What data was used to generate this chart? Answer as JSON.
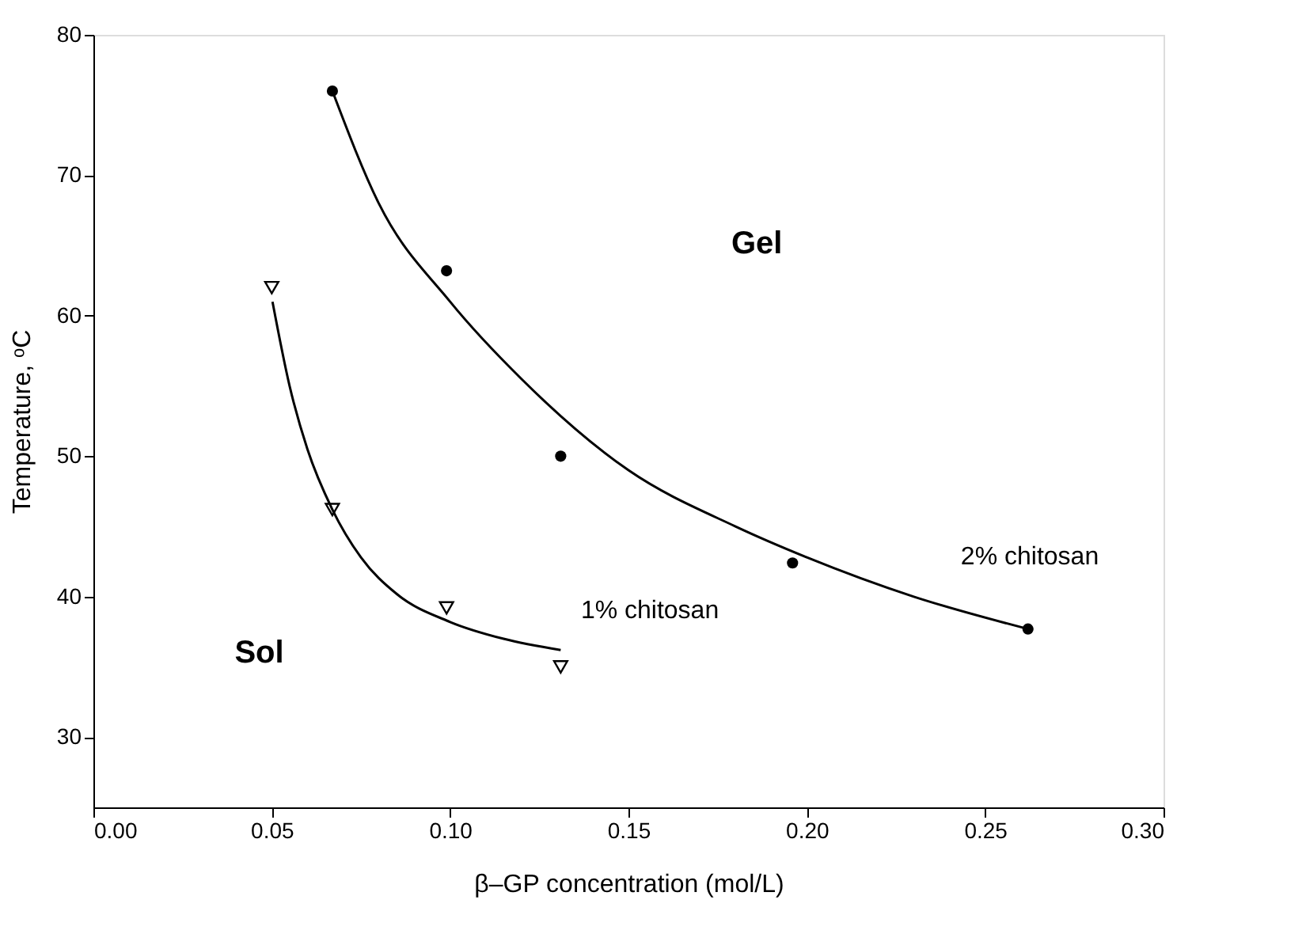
{
  "chart_data": {
    "type": "scatter",
    "xlabel": "β–GP concentration (mol/L)",
    "ylabel": "Temperature, ᵒC",
    "xlim": [
      0,
      0.3
    ],
    "ylim": [
      25,
      80
    ],
    "xticks": [
      {
        "value": 0,
        "label": "0.00"
      },
      {
        "value": 0.05,
        "label": "0.05"
      },
      {
        "value": 0.1,
        "label": "0.10"
      },
      {
        "value": 0.15,
        "label": "0.15"
      },
      {
        "value": 0.2,
        "label": "0.20"
      },
      {
        "value": 0.25,
        "label": "0.25"
      },
      {
        "value": 0.3,
        "label": "0.30"
      }
    ],
    "yticks": [
      30,
      40,
      50,
      60,
      70,
      80
    ],
    "grid": false,
    "series": [
      {
        "type": "scatter",
        "marker": "circle",
        "color": "#000000",
        "x": [
          0.067,
          0.099,
          0.131,
          0.196,
          0.262
        ],
        "values": [
          76,
          63.2,
          50,
          42.4,
          37.7
        ]
      },
      {
        "type": "scatter",
        "marker": "triangle",
        "color": "#000000",
        "x": [
          0.05,
          0.067,
          0.099,
          0.131
        ],
        "values": [
          62,
          46.2,
          39.2,
          35
        ]
      },
      {
        "type": "line",
        "marker": "none",
        "line_style": "solid",
        "color": "#000000",
        "x": [
          0.067,
          0.08,
          0.1,
          0.12,
          0.15,
          0.18,
          0.2,
          0.23,
          0.262
        ],
        "values": [
          76,
          68,
          61,
          55.5,
          49,
          45,
          42.8,
          40,
          37.7
        ]
      },
      {
        "type": "line",
        "marker": "none",
        "line_style": "solid",
        "color": "#000000",
        "x": [
          0.0502,
          0.055,
          0.06,
          0.067,
          0.075,
          0.085,
          0.1,
          0.115,
          0.131
        ],
        "values": [
          61,
          55,
          50.5,
          46.2,
          42.8,
          40.2,
          38.2,
          37,
          36.2
        ]
      }
    ],
    "annotations": [
      "Gel",
      "Sol",
      "1% chitosan",
      "2% chitosan"
    ]
  }
}
